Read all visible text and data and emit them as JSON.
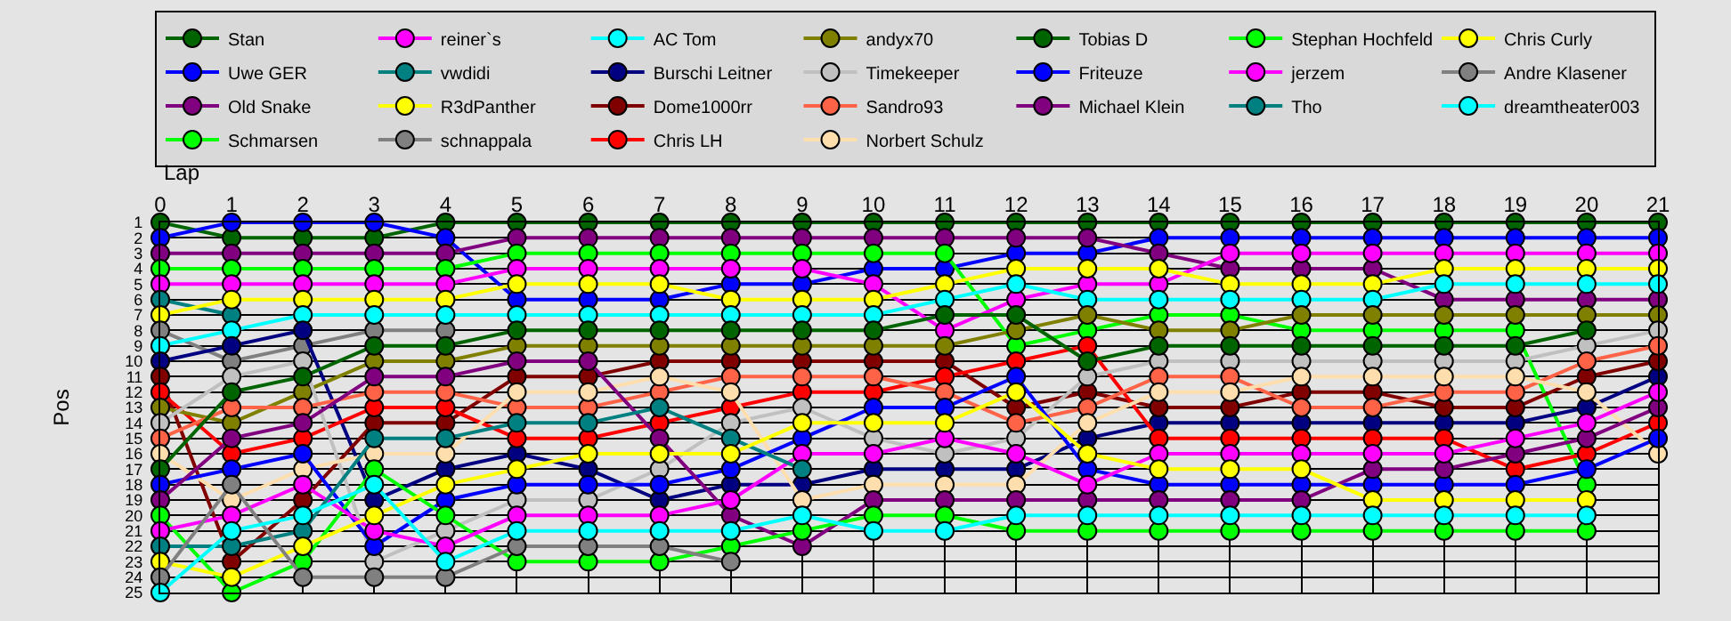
{
  "chart_data": {
    "type": "line",
    "xlabel": "Lap",
    "ylabel": "Pos",
    "x": [
      0,
      1,
      2,
      3,
      4,
      5,
      6,
      7,
      8,
      9,
      10,
      11,
      12,
      13,
      14,
      15,
      16,
      17,
      18,
      19,
      20,
      21
    ],
    "xlim": [
      0,
      21
    ],
    "xticks": [
      0,
      1,
      2,
      3,
      4,
      5,
      6,
      7,
      8,
      9,
      10,
      11,
      12,
      13,
      14,
      15,
      16,
      17,
      18,
      19,
      20,
      21
    ],
    "ylim": [
      25,
      1
    ],
    "yticks": [
      1,
      2,
      3,
      4,
      5,
      6,
      7,
      8,
      9,
      10,
      11,
      12,
      13,
      14,
      15,
      16,
      17,
      18,
      19,
      20,
      21,
      22,
      23,
      24,
      25
    ],
    "grid": true,
    "legend": "top",
    "marker": "circle",
    "line_style": "solid",
    "series": [
      {
        "name": "Stan",
        "color": "#006400",
        "values": [
          1,
          2,
          2,
          2,
          1,
          1,
          1,
          1,
          1,
          1,
          1,
          1,
          1,
          1,
          1,
          1,
          1,
          1,
          1,
          1,
          1,
          1
        ]
      },
      {
        "name": "Uwe GER",
        "color": "#0000ff",
        "values": [
          2,
          1,
          1,
          1,
          2,
          6,
          6,
          6,
          5,
          5,
          4,
          4,
          3,
          3,
          2,
          2,
          2,
          2,
          2,
          2,
          2,
          2
        ]
      },
      {
        "name": "Old Snake",
        "color": "#800080",
        "values": [
          3,
          3,
          3,
          3,
          3,
          2,
          2,
          2,
          2,
          2,
          2,
          2,
          2,
          2,
          3,
          4,
          4,
          4,
          6,
          6,
          6,
          6
        ]
      },
      {
        "name": "Schmarsen",
        "color": "#00ff00",
        "values": [
          4,
          4,
          4,
          4,
          4,
          3,
          3,
          3,
          3,
          3,
          3,
          3,
          9,
          8,
          7,
          7,
          8,
          8,
          8,
          8,
          18,
          null
        ]
      },
      {
        "name": "reiner`s",
        "color": "#ff00ff",
        "values": [
          5,
          5,
          5,
          5,
          5,
          4,
          4,
          4,
          4,
          4,
          5,
          8,
          6,
          5,
          5,
          3,
          3,
          3,
          3,
          3,
          3,
          3
        ]
      },
      {
        "name": "vwdidi",
        "color": "#008080",
        "values": [
          6,
          7,
          null,
          null,
          null,
          null,
          null,
          null,
          null,
          null,
          null,
          null,
          null,
          null,
          null,
          null,
          null,
          null,
          null,
          null,
          null,
          null
        ]
      },
      {
        "name": "R3dPanther",
        "color": "#ffff00",
        "values": [
          7,
          6,
          6,
          6,
          6,
          5,
          5,
          5,
          6,
          6,
          6,
          5,
          4,
          4,
          4,
          5,
          5,
          5,
          4,
          4,
          4,
          4
        ]
      },
      {
        "name": "schnappala",
        "color": "#808080",
        "values": [
          8,
          10,
          9,
          8,
          8,
          null,
          null,
          null,
          null,
          null,
          null,
          null,
          null,
          null,
          null,
          null,
          null,
          null,
          null,
          null,
          null,
          null
        ]
      },
      {
        "name": "AC Tom",
        "color": "#00ffff",
        "values": [
          9,
          8,
          7,
          7,
          7,
          7,
          7,
          7,
          7,
          7,
          7,
          6,
          5,
          6,
          6,
          6,
          6,
          6,
          5,
          5,
          5,
          5
        ]
      },
      {
        "name": "Burschi Leitner",
        "color": "#000080",
        "values": [
          10,
          9,
          8,
          19,
          17,
          16,
          17,
          19,
          18,
          18,
          17,
          17,
          17,
          15,
          14,
          14,
          14,
          14,
          14,
          14,
          13,
          11
        ]
      },
      {
        "name": "Dome1000rr",
        "color": "#800000",
        "values": [
          11,
          23,
          19,
          14,
          14,
          11,
          11,
          10,
          10,
          10,
          10,
          10,
          13,
          12,
          13,
          13,
          12,
          12,
          13,
          13,
          11,
          10
        ]
      },
      {
        "name": "Chris LH",
        "color": "#ff0000",
        "values": [
          12,
          16,
          15,
          13,
          13,
          15,
          15,
          14,
          13,
          12,
          12,
          11,
          10,
          9,
          15,
          15,
          15,
          15,
          15,
          17,
          16,
          14
        ]
      },
      {
        "name": "andyx70",
        "color": "#808000",
        "values": [
          13,
          14,
          12,
          10,
          10,
          9,
          9,
          9,
          9,
          9,
          9,
          9,
          8,
          7,
          8,
          8,
          7,
          7,
          7,
          7,
          7,
          7
        ]
      },
      {
        "name": "Timekeeper",
        "color": "#c0c0c0",
        "values": [
          14,
          11,
          10,
          23,
          21,
          19,
          19,
          17,
          14,
          13,
          15,
          16,
          15,
          11,
          10,
          10,
          10,
          10,
          10,
          10,
          9,
          8
        ]
      },
      {
        "name": "Sandro93",
        "color": "#ff6347",
        "values": [
          15,
          13,
          13,
          12,
          12,
          13,
          13,
          12,
          11,
          11,
          11,
          12,
          14,
          13,
          11,
          11,
          13,
          13,
          12,
          12,
          10,
          9
        ]
      },
      {
        "name": "Norbert Schulz",
        "color": "#ffdead",
        "values": [
          16,
          19,
          17,
          16,
          16,
          12,
          12,
          11,
          12,
          19,
          18,
          18,
          18,
          14,
          12,
          12,
          11,
          11,
          11,
          11,
          12,
          16
        ]
      },
      {
        "name": "Tobias D",
        "color": "#006400",
        "values": [
          17,
          12,
          11,
          9,
          9,
          8,
          8,
          8,
          8,
          8,
          8,
          7,
          7,
          10,
          9,
          9,
          9,
          9,
          9,
          9,
          8,
          null
        ]
      },
      {
        "name": "Friteuze",
        "color": "#0000ff",
        "values": [
          18,
          17,
          16,
          22,
          19,
          18,
          18,
          18,
          17,
          15,
          13,
          13,
          11,
          17,
          18,
          18,
          18,
          18,
          18,
          18,
          17,
          15
        ]
      },
      {
        "name": "Michael Klein",
        "color": "#800080",
        "values": [
          19,
          15,
          14,
          11,
          11,
          10,
          10,
          15,
          20,
          22,
          19,
          19,
          19,
          19,
          19,
          19,
          19,
          17,
          17,
          16,
          15,
          13
        ]
      },
      {
        "name": "Stephan Hochfeld",
        "color": "#00ff00",
        "values": [
          20,
          25,
          23,
          17,
          20,
          23,
          23,
          23,
          22,
          21,
          20,
          20,
          21,
          21,
          21,
          21,
          21,
          21,
          21,
          21,
          21,
          null
        ]
      },
      {
        "name": "jerzem",
        "color": "#ff00ff",
        "values": [
          21,
          20,
          18,
          21,
          22,
          20,
          20,
          20,
          19,
          16,
          16,
          15,
          16,
          18,
          16,
          16,
          16,
          16,
          16,
          15,
          14,
          12
        ]
      },
      {
        "name": "Tho",
        "color": "#008080",
        "values": [
          22,
          22,
          21,
          15,
          15,
          14,
          14,
          13,
          15,
          17,
          null,
          null,
          null,
          null,
          null,
          null,
          null,
          null,
          null,
          null,
          null,
          null
        ]
      },
      {
        "name": "Chris Curly",
        "color": "#ffff00",
        "values": [
          23,
          24,
          22,
          20,
          18,
          17,
          16,
          16,
          16,
          14,
          14,
          14,
          12,
          16,
          17,
          17,
          17,
          19,
          19,
          19,
          19,
          null
        ]
      },
      {
        "name": "Andre Klasener",
        "color": "#808080",
        "values": [
          24,
          18,
          24,
          24,
          24,
          22,
          22,
          22,
          23,
          null,
          null,
          null,
          null,
          null,
          null,
          null,
          null,
          null,
          null,
          null,
          null,
          null
        ]
      },
      {
        "name": "dreamtheater003",
        "color": "#00ffff",
        "values": [
          25,
          21,
          20,
          18,
          23,
          21,
          21,
          21,
          21,
          20,
          21,
          21,
          20,
          20,
          20,
          20,
          20,
          20,
          20,
          20,
          20,
          null
        ]
      }
    ]
  }
}
